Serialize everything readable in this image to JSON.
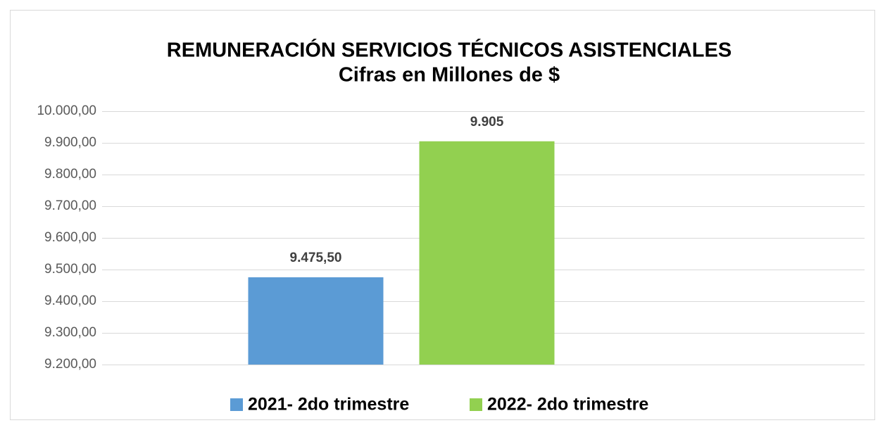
{
  "chart_data": {
    "type": "bar",
    "title": "REMUNERACIÓN SERVICIOS TÉCNICOS ASISTENCIALES",
    "subtitle": "Cifras en Millones de $",
    "categories": [
      null
    ],
    "series": [
      {
        "name": "2021- 2do trimestre",
        "color": "#5b9bd5",
        "values": [
          9475.5
        ],
        "value_labels": [
          "9.475,50"
        ]
      },
      {
        "name": "2022- 2do trimestre",
        "color": "#92d050",
        "values": [
          9905
        ],
        "value_labels": [
          "9.905"
        ]
      }
    ],
    "ylim": [
      9200,
      10000
    ],
    "yticks": [
      {
        "value": 9200,
        "label": "9.200,00"
      },
      {
        "value": 9300,
        "label": "9.300,00"
      },
      {
        "value": 9400,
        "label": "9.400,00"
      },
      {
        "value": 9500,
        "label": "9.500,00"
      },
      {
        "value": 9600,
        "label": "9.600,00"
      },
      {
        "value": 9700,
        "label": "9.700,00"
      },
      {
        "value": 9800,
        "label": "9.800,00"
      },
      {
        "value": 9900,
        "label": "9.900,00"
      },
      {
        "value": 10000,
        "label": "10.000,00"
      }
    ],
    "grid": true,
    "legend": "bottom"
  }
}
